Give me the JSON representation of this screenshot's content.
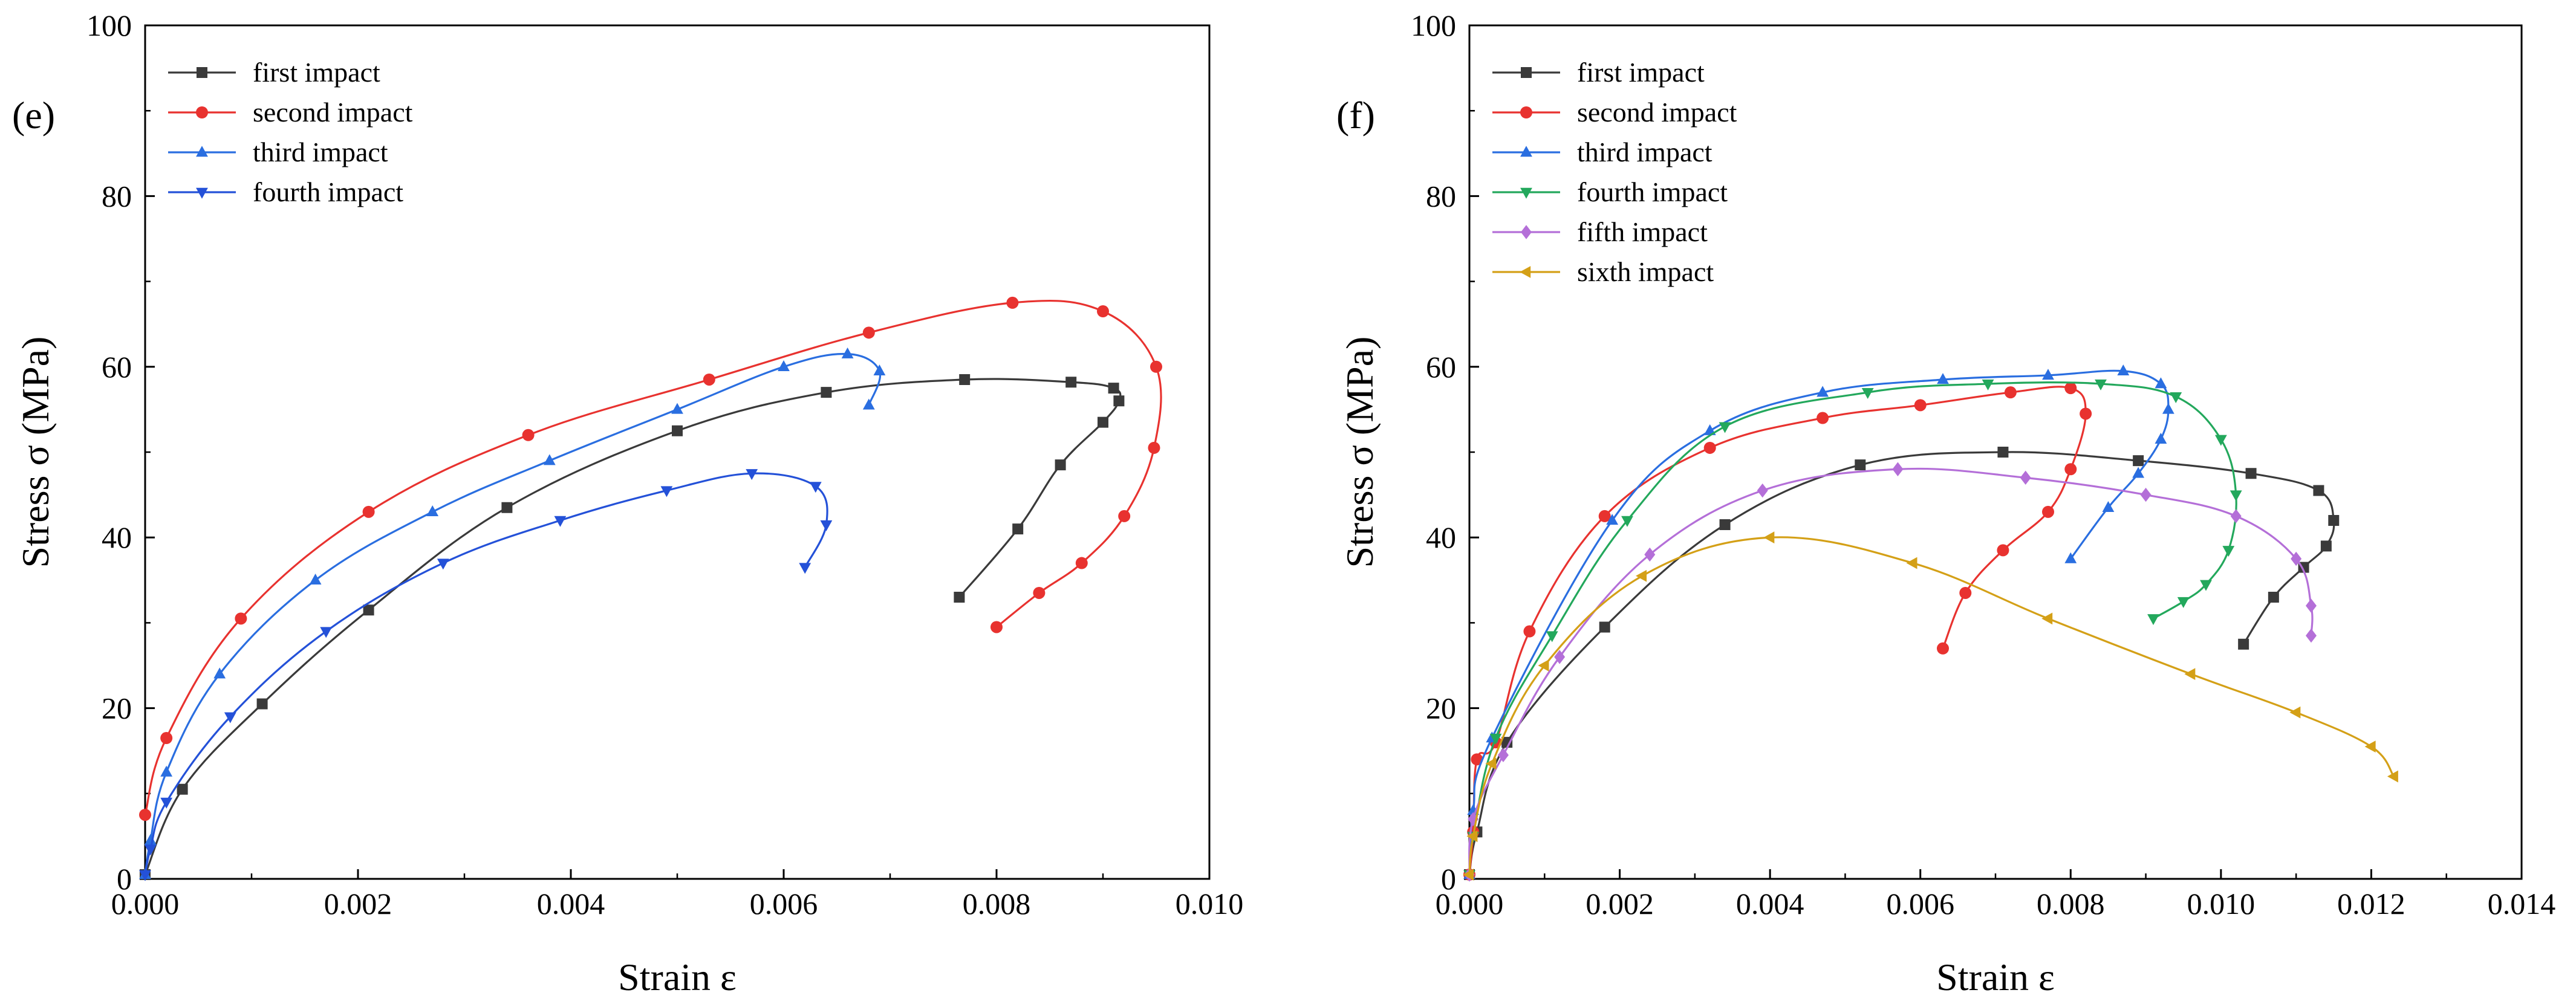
{
  "chart_data": [
    {
      "type": "line",
      "panel_label": "(e)",
      "xlabel": "Strain ε",
      "ylabel": "Stress σ (MPa)",
      "xlim": [
        0,
        0.01
      ],
      "ylim": [
        0,
        100
      ],
      "xticks": [
        "0.000",
        "0.002",
        "0.004",
        "0.006",
        "0.008",
        "0.010"
      ],
      "yticks": [
        "0",
        "20",
        "40",
        "60",
        "80",
        "100"
      ],
      "legend_position": "top-left",
      "series": [
        {
          "name": "first impact",
          "color": "#3a3a3a",
          "marker": "square",
          "x": [
            0.0,
            0.00035,
            0.0011,
            0.0021,
            0.0034,
            0.005,
            0.0064,
            0.0077,
            0.0087,
            0.0091,
            0.00915,
            0.009,
            0.0086,
            0.0082,
            0.00765
          ],
          "y": [
            0.5,
            10.5,
            20.5,
            31.5,
            43.5,
            52.5,
            57.0,
            58.5,
            58.2,
            57.5,
            56.0,
            53.5,
            48.5,
            41.0,
            33.0
          ]
        },
        {
          "name": "second impact",
          "color": "#e8322f",
          "marker": "circle",
          "x": [
            0.0,
            0.0002,
            0.0009,
            0.0021,
            0.0036,
            0.0053,
            0.0068,
            0.00815,
            0.009,
            0.0095,
            0.00948,
            0.0092,
            0.0088,
            0.0084,
            0.008
          ],
          "y": [
            7.5,
            16.5,
            30.5,
            43.0,
            52.0,
            58.5,
            64.0,
            67.5,
            66.5,
            60.0,
            50.5,
            42.5,
            37.0,
            33.5,
            29.5
          ]
        },
        {
          "name": "third impact",
          "color": "#2a6ee0",
          "marker": "triangle-up",
          "x": [
            0.0,
            5e-05,
            0.0002,
            0.0007,
            0.0016,
            0.0027,
            0.0038,
            0.005,
            0.006,
            0.0066,
            0.0069,
            0.0068
          ],
          "y": [
            0.5,
            4.5,
            12.5,
            24.0,
            35.0,
            43.0,
            49.0,
            55.0,
            60.0,
            61.5,
            59.5,
            55.5
          ]
        },
        {
          "name": "fourth impact",
          "color": "#2451d8",
          "marker": "triangle-down",
          "x": [
            0.0,
            5e-05,
            0.0002,
            0.0008,
            0.0017,
            0.0028,
            0.0039,
            0.0049,
            0.0057,
            0.0063,
            0.0064,
            0.0062
          ],
          "y": [
            0.5,
            3.5,
            9.0,
            19.0,
            29.0,
            37.0,
            42.0,
            45.5,
            47.5,
            46.0,
            41.5,
            36.5
          ]
        }
      ]
    },
    {
      "type": "line",
      "panel_label": "(f)",
      "xlabel": "Strain ε",
      "ylabel": "Stress σ (MPa)",
      "xlim": [
        0,
        0.014
      ],
      "ylim": [
        0,
        100
      ],
      "xticks": [
        "0.000",
        "0.002",
        "0.004",
        "0.006",
        "0.008",
        "0.010",
        "0.012",
        "0.014"
      ],
      "yticks": [
        "0",
        "20",
        "40",
        "60",
        "80",
        "100"
      ],
      "legend_position": "top-left",
      "series": [
        {
          "name": "first impact",
          "color": "#3a3a3a",
          "marker": "square",
          "x": [
            0.0,
            0.0001,
            0.0005,
            0.0018,
            0.0034,
            0.0052,
            0.0071,
            0.0089,
            0.0104,
            0.0113,
            0.0115,
            0.0114,
            0.0111,
            0.0107,
            0.0103
          ],
          "y": [
            0.5,
            5.5,
            16.0,
            29.5,
            41.5,
            48.5,
            50.0,
            49.0,
            47.5,
            45.5,
            42.0,
            39.0,
            36.5,
            33.0,
            27.5
          ]
        },
        {
          "name": "second impact",
          "color": "#e8322f",
          "marker": "circle",
          "x": [
            0.0,
            5e-05,
            0.0001,
            0.00035,
            0.0008,
            0.0018,
            0.0032,
            0.0047,
            0.006,
            0.0072,
            0.008,
            0.0082,
            0.008,
            0.0077,
            0.0071,
            0.0066,
            0.0063
          ],
          "y": [
            0.5,
            5.5,
            14.0,
            16.0,
            29.0,
            42.5,
            50.5,
            54.0,
            55.5,
            57.0,
            57.5,
            54.5,
            48.0,
            43.0,
            38.5,
            33.5,
            27.0
          ]
        },
        {
          "name": "third impact",
          "color": "#2a6ee0",
          "marker": "triangle-up",
          "x": [
            0.0,
            5e-05,
            0.0003,
            0.0019,
            0.0032,
            0.0047,
            0.0063,
            0.0077,
            0.0087,
            0.0092,
            0.0093,
            0.0092,
            0.0089,
            0.0085,
            0.008
          ],
          "y": [
            0.5,
            8.0,
            16.5,
            42.0,
            52.5,
            57.0,
            58.5,
            59.0,
            59.5,
            58.0,
            55.0,
            51.5,
            47.5,
            43.5,
            37.5
          ]
        },
        {
          "name": "fourth impact",
          "color": "#23a85c",
          "marker": "triangle-down",
          "x": [
            0.0,
            5e-05,
            0.00035,
            0.0011,
            0.0021,
            0.0034,
            0.0053,
            0.0069,
            0.0084,
            0.0094,
            0.01,
            0.0102,
            0.0101,
            0.0098,
            0.0095,
            0.0091
          ],
          "y": [
            0.5,
            5.0,
            16.5,
            28.5,
            42.0,
            53.0,
            57.0,
            58.0,
            58.0,
            56.5,
            51.5,
            45.0,
            38.5,
            34.5,
            32.5,
            30.5
          ]
        },
        {
          "name": "fifth impact",
          "color": "#b46fd8",
          "marker": "diamond",
          "x": [
            0.0,
            5e-05,
            0.00045,
            0.0012,
            0.0024,
            0.0039,
            0.0057,
            0.0074,
            0.009,
            0.0102,
            0.011,
            0.0112,
            0.0112
          ],
          "y": [
            0.5,
            7.0,
            14.5,
            26.0,
            38.0,
            45.5,
            48.0,
            47.0,
            45.0,
            42.5,
            37.5,
            32.0,
            28.5
          ]
        },
        {
          "name": "sixth impact",
          "color": "#d4a017",
          "marker": "triangle-left",
          "x": [
            0.0,
            5e-05,
            0.0003,
            0.001,
            0.0023,
            0.004,
            0.0059,
            0.0077,
            0.0096,
            0.011,
            0.012,
            0.0123
          ],
          "y": [
            0.5,
            5.0,
            13.5,
            25.0,
            35.5,
            40.0,
            37.0,
            30.5,
            24.0,
            19.5,
            15.5,
            12.0
          ]
        }
      ]
    }
  ]
}
